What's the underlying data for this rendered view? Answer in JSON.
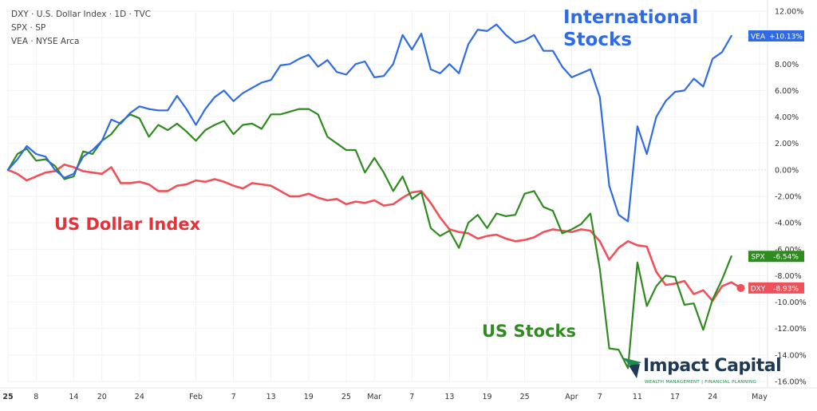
{
  "chart_data": {
    "type": "line",
    "legend": [
      {
        "symbol": "DXY",
        "description": "U.S. Dollar Index",
        "interval": "1D",
        "exchange": "TVC"
      },
      {
        "symbol": "SPX",
        "description": "",
        "interval": "",
        "exchange": "SP"
      },
      {
        "symbol": "VEA",
        "description": "",
        "interval": "",
        "exchange": "NYSE Arca"
      }
    ],
    "ylim": [
      -16,
      12
    ],
    "yticks": [
      12,
      10,
      8,
      6,
      4,
      2,
      0,
      -2,
      -4,
      -6,
      -8,
      -10,
      -12,
      -14,
      -16
    ],
    "ytick_labels": [
      "12.00%",
      "10.00%",
      "8.00%",
      "6.00%",
      "4.00%",
      "2.00%",
      "0.00%",
      "-2.00%",
      "-4.00%",
      "-6.00%",
      "-8.00%",
      "-10.00%",
      "-12.00%",
      "-14.00%",
      "-16.00%"
    ],
    "xtick_labels": [
      {
        "label": "25",
        "day": 0
      },
      {
        "label": "8",
        "day": 3
      },
      {
        "label": "14",
        "day": 7
      },
      {
        "label": "20",
        "day": 10
      },
      {
        "label": "24",
        "day": 14
      },
      {
        "label": "Feb",
        "day": 20
      },
      {
        "label": "7",
        "day": 24
      },
      {
        "label": "13",
        "day": 28
      },
      {
        "label": "19",
        "day": 32
      },
      {
        "label": "25",
        "day": 36
      },
      {
        "label": "Mar",
        "day": 39
      },
      {
        "label": "7",
        "day": 43
      },
      {
        "label": "13",
        "day": 47
      },
      {
        "label": "19",
        "day": 51
      },
      {
        "label": "25",
        "day": 55
      },
      {
        "label": "Apr",
        "day": 60
      },
      {
        "label": "7",
        "day": 63
      },
      {
        "label": "11",
        "day": 67
      },
      {
        "label": "17",
        "day": 71
      },
      {
        "label": "24",
        "day": 75
      },
      {
        "label": "May",
        "day": 80
      }
    ],
    "series": [
      {
        "key": "vea",
        "name": "VEA",
        "color": "#2f6be6",
        "last_label": "+10.13%",
        "values": [
          0,
          0.8,
          1.8,
          1.2,
          1.0,
          0,
          -0.6,
          -0.3,
          1.0,
          1.5,
          2.2,
          3.8,
          3.5,
          4.3,
          4.8,
          4.6,
          4.5,
          4.5,
          5.6,
          4.6,
          3.4,
          4.6,
          5.5,
          6.0,
          5.2,
          5.8,
          6.2,
          6.6,
          6.8,
          7.9,
          8.0,
          8.4,
          8.7,
          7.8,
          8.3,
          7.4,
          7.2,
          8.0,
          8.2,
          7.0,
          7.1,
          8.0,
          10.2,
          9.1,
          10.3,
          7.6,
          7.3,
          8.0,
          7.3,
          9.5,
          10.6,
          10.5,
          11.0,
          10.2,
          9.6,
          9.8,
          10.2,
          9.0,
          9.0,
          7.8,
          7.0,
          7.3,
          7.6,
          5.5,
          -1.2,
          -3.4,
          -3.9,
          3.3,
          1.2,
          4.0,
          5.2,
          5.9,
          6.0,
          6.9,
          6.3,
          8.4,
          8.9,
          10.13
        ]
      },
      {
        "key": "spx",
        "name": "SPX",
        "color": "#2e8b1e",
        "last_label": "-6.54%",
        "values": [
          0,
          1.2,
          1.6,
          0.7,
          0.8,
          0.3,
          -0.7,
          -0.5,
          1.4,
          1.2,
          2.2,
          2.7,
          3.6,
          4.2,
          3.9,
          2.5,
          3.4,
          3.0,
          3.5,
          2.9,
          2.2,
          3.0,
          3.4,
          3.7,
          2.7,
          3.4,
          3.5,
          3.1,
          4.2,
          4.2,
          4.4,
          4.6,
          4.6,
          4.2,
          2.5,
          2.0,
          1.5,
          1.5,
          -0.2,
          0.9,
          -0.2,
          -1.6,
          -0.5,
          -2.2,
          -1.7,
          -4.4,
          -5.0,
          -4.6,
          -5.9,
          -4.0,
          -3.4,
          -4.4,
          -3.3,
          -3.5,
          -3.4,
          -1.8,
          -1.6,
          -2.8,
          -3.1,
          -4.8,
          -4.5,
          -4.1,
          -3.3,
          -7.5,
          -13.5,
          -13.6,
          -15.0,
          -7.0,
          -10.3,
          -8.8,
          -8.0,
          -8.1,
          -10.2,
          -10.1,
          -12.1,
          -9.8,
          -8.3,
          -6.54
        ]
      },
      {
        "key": "dxy",
        "name": "DXY",
        "color": "#f0505a",
        "last_label": "-8.93%",
        "values": [
          0,
          -0.3,
          -0.8,
          -0.5,
          -0.2,
          -0.1,
          0.4,
          0.2,
          -0.1,
          -0.2,
          -0.3,
          0.2,
          -1.0,
          -1.0,
          -0.9,
          -1.1,
          -1.6,
          -1.6,
          -1.2,
          -1.1,
          -0.8,
          -0.9,
          -0.7,
          -0.9,
          -1.2,
          -1.4,
          -1.0,
          -1.1,
          -1.2,
          -1.6,
          -2.0,
          -2.0,
          -1.8,
          -2.1,
          -2.3,
          -2.2,
          -2.6,
          -2.4,
          -2.5,
          -2.3,
          -2.7,
          -2.6,
          -2.1,
          -1.7,
          -1.6,
          -2.5,
          -3.6,
          -4.5,
          -4.7,
          -4.8,
          -5.2,
          -5.0,
          -4.9,
          -5.2,
          -5.4,
          -5.3,
          -5.1,
          -4.7,
          -4.5,
          -4.6,
          -4.7,
          -4.5,
          -4.6,
          -5.4,
          -6.8,
          -5.9,
          -5.4,
          -5.7,
          -5.8,
          -7.7,
          -8.7,
          -8.6,
          -8.4,
          -9.4,
          -9.1,
          -9.9,
          -8.8,
          -8.5,
          -8.93
        ]
      }
    ],
    "annotations": [
      {
        "key": "intl",
        "lines": [
          "International",
          "Stocks"
        ],
        "color": "#2f6be6"
      },
      {
        "key": "us_stocks",
        "lines": [
          "US Stocks"
        ],
        "color": "#2e8b1e"
      },
      {
        "key": "usd",
        "lines": [
          "US Dollar Index"
        ],
        "color": "#e53238"
      }
    ]
  },
  "legend_text": {
    "line1": "DXY · U.S. Dollar Index · 1D · TVC",
    "line2": "SPX · SP",
    "line3": "VEA · NYSE Arca"
  },
  "logo": {
    "name": "Impact Capital",
    "tagline": "WEALTH MANAGEMENT  |  FINANCIAL PLANNING"
  }
}
